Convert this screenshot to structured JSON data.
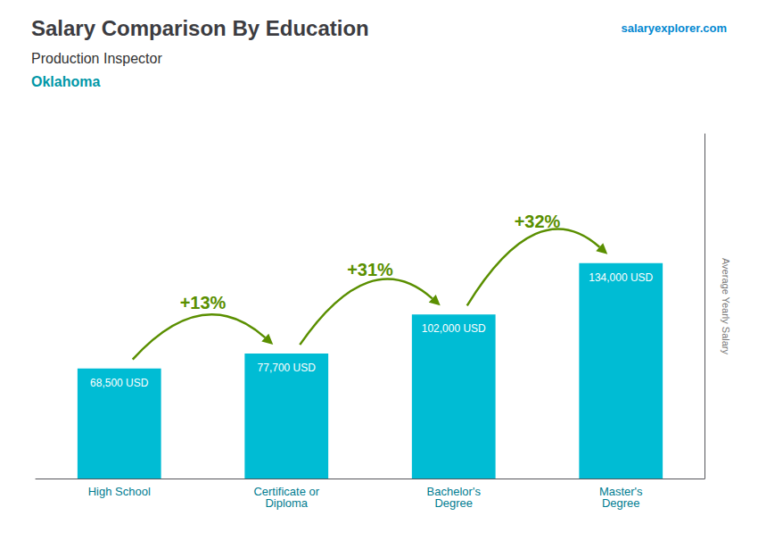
{
  "chart_data": {
    "type": "bar",
    "title": "Salary Comparison By Education",
    "subtitle": [
      "Production Inspector",
      "Oklahoma"
    ],
    "source": "salaryexplorer.com",
    "ylabel": "Average Yearly Salary",
    "categories": [
      "High School",
      "Certificate or\nDiploma",
      "Bachelor's\nDegree",
      "Master's\nDegree"
    ],
    "values": [
      68500,
      77700,
      102000,
      134000
    ],
    "value_labels": [
      "68,500 USD",
      "77,700 USD",
      "102,000 USD",
      "134,000 USD"
    ],
    "data_labels": true,
    "annotations": [
      "+13%",
      "+31%",
      "+32%"
    ],
    "color": "#00bcd4",
    "ylim": [
      0,
      214400
    ],
    "grid": false,
    "tick_labels": "x"
  }
}
